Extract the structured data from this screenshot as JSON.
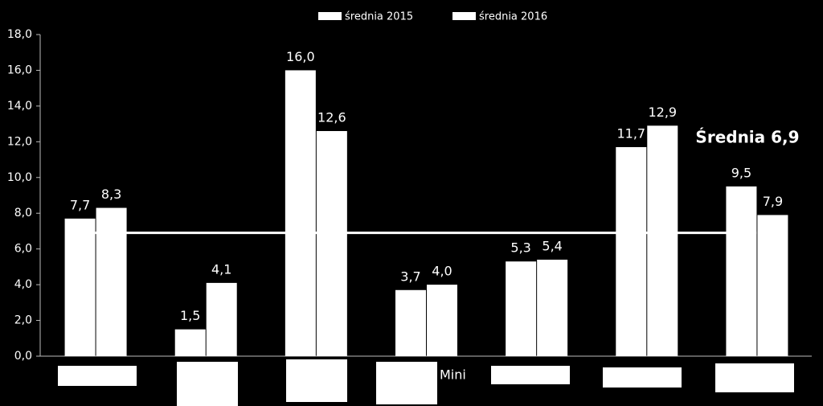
{
  "chart_data": {
    "type": "bar",
    "categories": [
      null,
      null,
      null,
      "Mini",
      null,
      null,
      null
    ],
    "series": [
      {
        "name": "średnia 2015",
        "color": "#ffffff",
        "values": [
          7.7,
          1.5,
          16.0,
          3.7,
          5.3,
          11.7,
          9.5
        ],
        "value_labels": [
          "7,7",
          "1,5",
          "16,0",
          "3,7",
          "5,3",
          "11,7",
          "9,5"
        ]
      },
      {
        "name": "średnia 2016",
        "color": "#ffffff",
        "values": [
          8.3,
          4.1,
          12.6,
          4.0,
          5.4,
          12.9,
          7.9
        ],
        "value_labels": [
          "8,3",
          "4,1",
          "12,6",
          "4,0",
          "5,4",
          "12,9",
          "7,9"
        ]
      }
    ],
    "ylim": [
      0,
      18
    ],
    "yticks": [
      {
        "value": 0,
        "label": "0,0"
      },
      {
        "value": 2,
        "label": "2,0"
      },
      {
        "value": 4,
        "label": "4,0"
      },
      {
        "value": 6,
        "label": "6,0"
      },
      {
        "value": 8,
        "label": "8,0"
      },
      {
        "value": 10,
        "label": "10,0"
      },
      {
        "value": 12,
        "label": "12,0"
      },
      {
        "value": 14,
        "label": "14,0"
      },
      {
        "value": 16,
        "label": "16,0"
      },
      {
        "value": 18,
        "label": "18,0"
      }
    ],
    "average": 6.9,
    "average_label": "Średnia 6,9",
    "legend": "top"
  }
}
